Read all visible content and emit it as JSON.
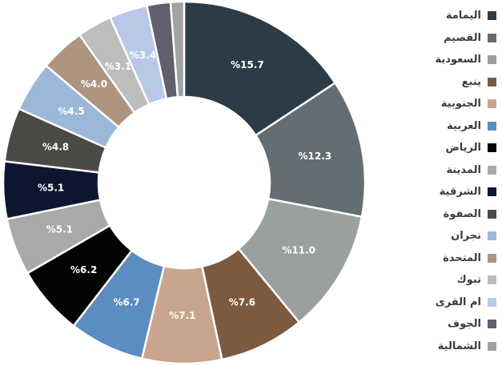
{
  "chart_data": {
    "type": "pie",
    "variant": "donut",
    "value_suffix": "%",
    "legend_position": "right",
    "slices": [
      {
        "label": "اليمامة",
        "value": 15.7,
        "color": "#2c3b48",
        "text_color": "#ffffff"
      },
      {
        "label": "القصيم",
        "value": 12.3,
        "color": "#646d72",
        "text_color": "#ffffff"
      },
      {
        "label": "السعودية",
        "value": 11.0,
        "color": "#9aa0a0",
        "text_color": "#ffffff"
      },
      {
        "label": "ينبع",
        "value": 7.6,
        "color": "#7c5a3f",
        "text_color": "#ffffff"
      },
      {
        "label": "الجنوبية",
        "value": 7.1,
        "color": "#c9a58e",
        "text_color": "#ffffff"
      },
      {
        "label": "العربية",
        "value": 6.7,
        "color": "#5b8cc2",
        "text_color": "#ffffff"
      },
      {
        "label": "الرياض",
        "value": 6.2,
        "color": "#050505",
        "text_color": "#ffffff"
      },
      {
        "label": "المدينة",
        "value": 5.1,
        "color": "#a7aaa7",
        "text_color": "#ffffff"
      },
      {
        "label": "الشرقية",
        "value": 5.1,
        "color": "#0c1630",
        "text_color": "#ffffff"
      },
      {
        "label": "الصفوة",
        "value": 4.8,
        "color": "#4b4a46",
        "text_color": "#ffffff"
      },
      {
        "label": "نجران",
        "value": 4.5,
        "color": "#9bb8d9",
        "text_color": "#ffffff"
      },
      {
        "label": "المتحدة",
        "value": 4.0,
        "color": "#ad9580",
        "text_color": "#ffffff"
      },
      {
        "label": "تبوك",
        "value": 3.1,
        "color": "#bdbdbd",
        "text_color": "#ffffff"
      },
      {
        "label": "ام القرى",
        "value": 3.4,
        "color": "#b9c8e6",
        "text_color": "#ffffff"
      },
      {
        "label": "الجوف",
        "value": 2.1,
        "color": "#60606e",
        "text_color": "#3c3c3c"
      },
      {
        "label": "الشمالية",
        "value": 1.2,
        "color": "#a0a3a5",
        "text_color": "#3c3c3c"
      }
    ]
  }
}
